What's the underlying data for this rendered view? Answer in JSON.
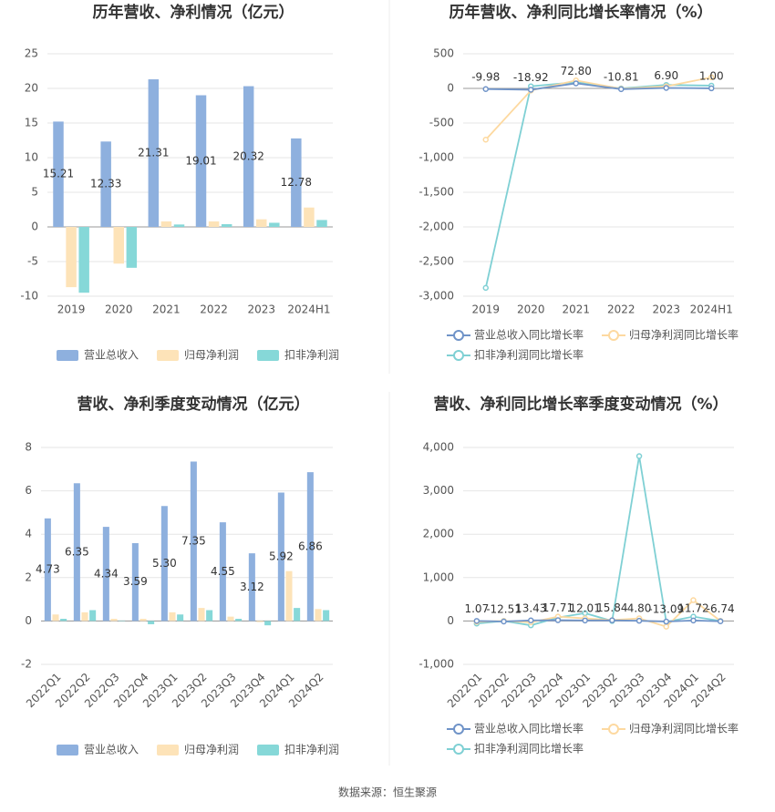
{
  "chart_data": [
    {
      "type": "bar",
      "title": "历年营收、净利情况（亿元）",
      "categories": [
        "2019",
        "2020",
        "2021",
        "2022",
        "2023",
        "2024H1"
      ],
      "series": [
        {
          "name": "营业总收入",
          "color": "#8eb0de",
          "labels": true,
          "values": [
            15.21,
            12.33,
            21.31,
            19.01,
            20.32,
            12.78
          ]
        },
        {
          "name": "归母净利润",
          "color": "#fde3b8",
          "values": [
            -8.7,
            -5.3,
            0.8,
            0.8,
            1.1,
            2.8
          ]
        },
        {
          "name": "扣非净利润",
          "color": "#86d8d8",
          "values": [
            -9.5,
            -5.9,
            0.35,
            0.4,
            0.6,
            1.0
          ]
        }
      ],
      "ylim": [
        -10,
        25
      ],
      "yticks": [
        -10,
        -5,
        0,
        5,
        10,
        15,
        20,
        25
      ],
      "grid": true,
      "legend": "bottom"
    },
    {
      "type": "line",
      "title": "历年营收、净利同比增长率情况（%）",
      "categories": [
        "2019",
        "2020",
        "2021",
        "2022",
        "2023",
        "2024H1"
      ],
      "series": [
        {
          "name": "营业总收入同比增长率",
          "color": "#6f93c8",
          "labels": true,
          "values": [
            -9.98,
            -18.92,
            72.8,
            -10.81,
            6.9,
            1.0
          ],
          "value_labels": [
            "-9.98",
            "-18.92",
            "72.80",
            "-10.81",
            "6.90",
            "1.00"
          ]
        },
        {
          "name": "归母净利润同比增长率",
          "color": "#fdd9a0",
          "values": [
            -740,
            -30,
            115,
            -5,
            30,
            160
          ]
        },
        {
          "name": "扣非净利润同比增长率",
          "color": "#7fd0d4",
          "values": [
            -2880,
            30,
            90,
            0,
            50,
            40
          ]
        }
      ],
      "ylim": [
        -3000,
        500
      ],
      "yticks": [
        {
          "value": -3000,
          "label": "-3,000"
        },
        {
          "value": -2500,
          "label": "-2,500"
        },
        {
          "value": -2000,
          "label": "-2,000"
        },
        {
          "value": -1500,
          "label": "-1,500"
        },
        {
          "value": -1000,
          "label": "-1,000"
        },
        -500,
        0,
        500
      ],
      "grid": true,
      "legend": "bottom"
    },
    {
      "type": "bar",
      "title": "营收、净利季度变动情况（亿元）",
      "categories": [
        "2022Q1",
        "2022Q2",
        "2022Q3",
        "2022Q4",
        "2023Q1",
        "2023Q2",
        "2023Q3",
        "2023Q4",
        "2024Q1",
        "2024Q2"
      ],
      "series": [
        {
          "name": "营业总收入",
          "color": "#8eb0de",
          "labels": true,
          "values": [
            4.73,
            6.35,
            4.34,
            3.59,
            5.3,
            7.35,
            4.55,
            3.12,
            5.92,
            6.86
          ],
          "value_labels": [
            "4.73",
            "6.35",
            "4.34",
            "3.59",
            "5.30",
            "7.35",
            "4.55",
            "3.12",
            "5.92",
            "6.86"
          ]
        },
        {
          "name": "归母净利润",
          "color": "#fde3b8",
          "values": [
            0.3,
            0.4,
            0.1,
            0.1,
            0.4,
            0.6,
            0.2,
            -0.05,
            2.3,
            0.55
          ]
        },
        {
          "name": "扣非净利润",
          "color": "#86d8d8",
          "values": [
            0.1,
            0.5,
            0.02,
            -0.15,
            0.3,
            0.5,
            0.1,
            -0.2,
            0.6,
            0.5
          ]
        }
      ],
      "ylim": [
        -2,
        8
      ],
      "yticks": [
        -2,
        0,
        2,
        4,
        6,
        8
      ],
      "grid": true,
      "legend": "bottom"
    },
    {
      "type": "line",
      "title": "营收、净利同比增长率季度变动情况（%）",
      "categories": [
        "2022Q1",
        "2022Q2",
        "2022Q3",
        "2022Q4",
        "2023Q1",
        "2023Q2",
        "2023Q3",
        "2023Q4",
        "2024Q1",
        "2024Q2"
      ],
      "series": [
        {
          "name": "营业总收入同比增长率",
          "color": "#6f93c8",
          "labels": true,
          "values": [
            1.07,
            -12.51,
            13.43,
            17.71,
            12.01,
            15.84,
            4.8,
            -13.09,
            11.72,
            -6.74
          ],
          "value_labels": [
            "1.07",
            "-12.51",
            "13.43",
            "17.71",
            "12.01",
            "15.84",
            "4.80",
            "-13.09",
            "11.72",
            "-6.74"
          ]
        },
        {
          "name": "归母净利润同比增长率",
          "color": "#fdd9a0",
          "values": [
            -20,
            0,
            -30,
            100,
            60,
            20,
            60,
            -130,
            480,
            0
          ]
        },
        {
          "name": "扣非净利润同比增长率",
          "color": "#7fd0d4",
          "values": [
            -60,
            0,
            -100,
            80,
            180,
            0,
            3800,
            -20,
            100,
            0
          ]
        }
      ],
      "ylim": [
        -1000,
        4000
      ],
      "yticks": [
        {
          "value": -1000,
          "label": "-1,000"
        },
        0,
        {
          "value": 1000,
          "label": "1,000"
        },
        {
          "value": 2000,
          "label": "2,000"
        },
        {
          "value": 3000,
          "label": "3,000"
        },
        {
          "value": 4000,
          "label": "4,000"
        }
      ],
      "grid": true,
      "legend": "bottom"
    }
  ],
  "source": "数据来源：恒生聚源"
}
